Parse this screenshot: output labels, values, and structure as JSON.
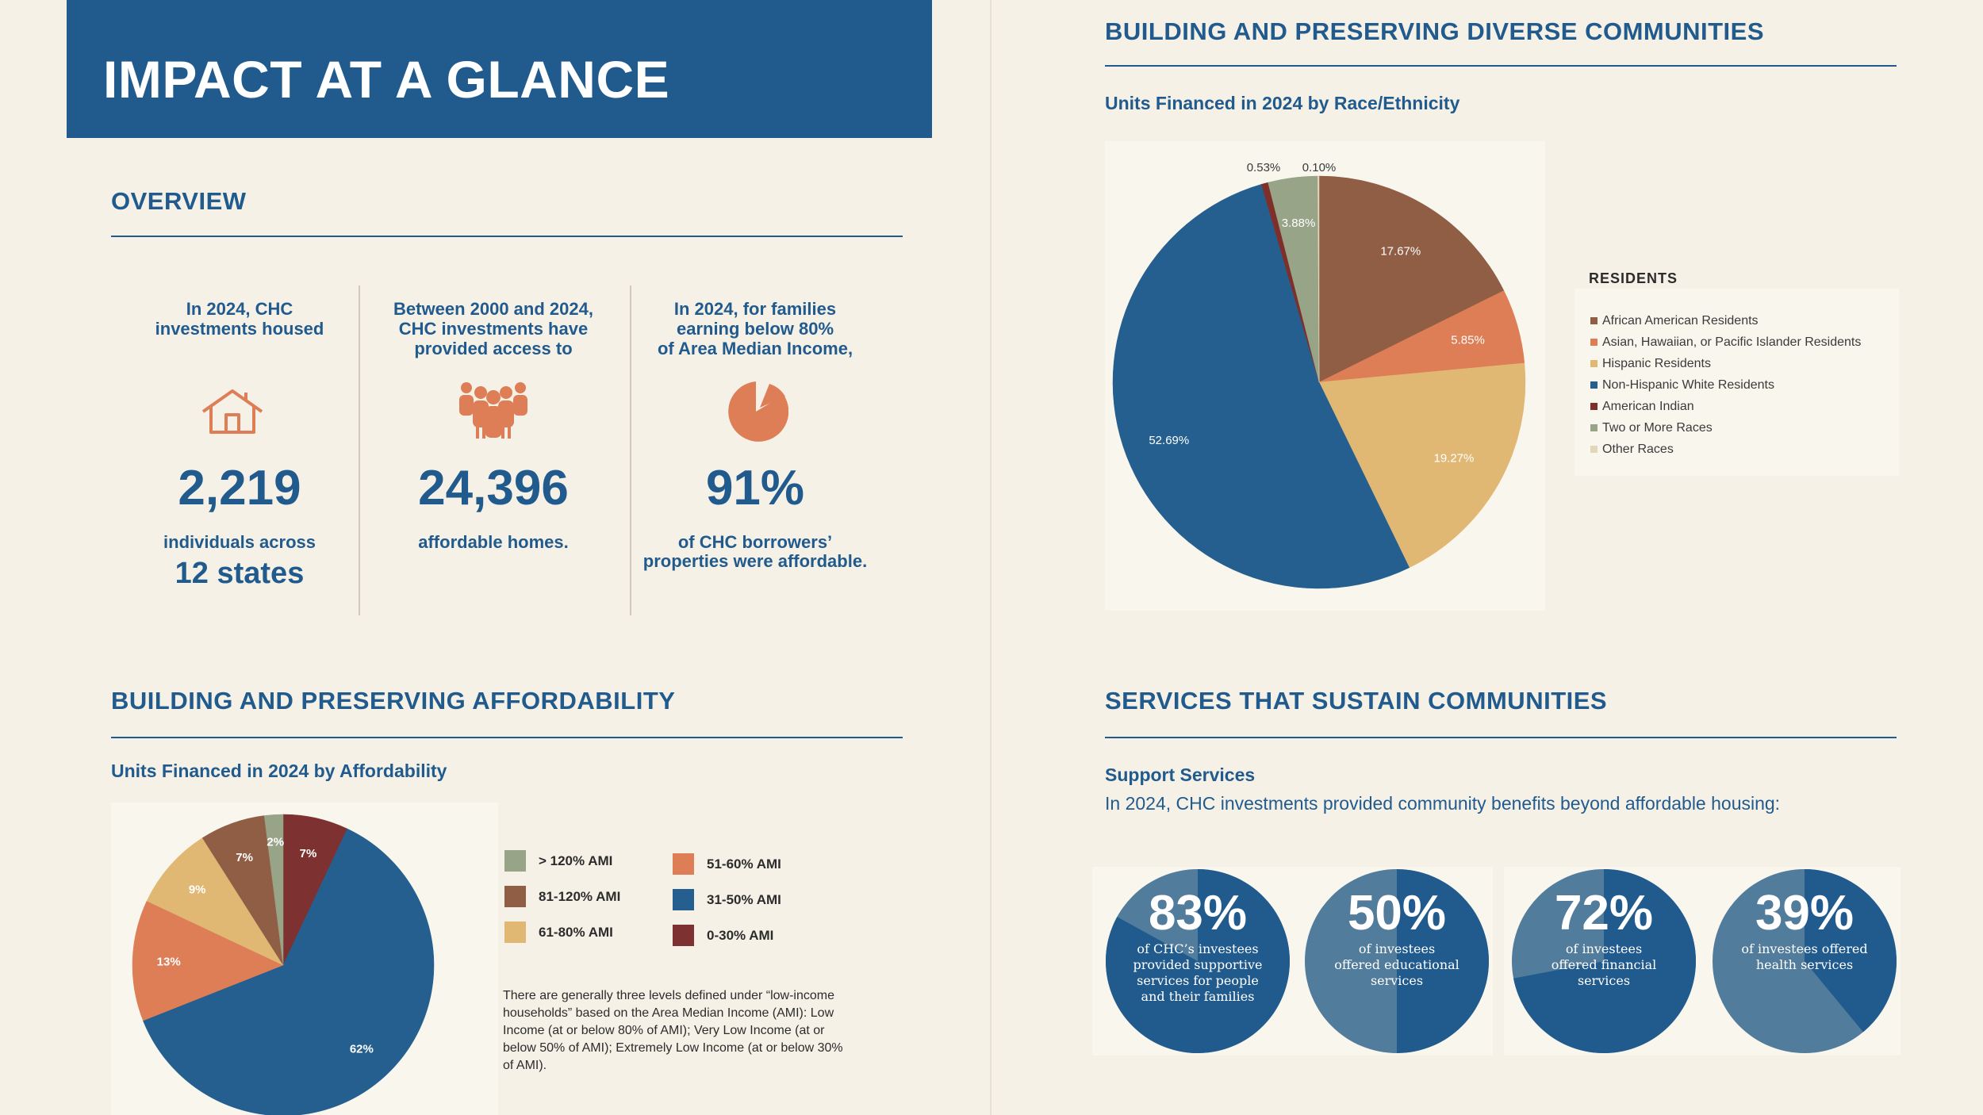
{
  "header": {
    "title": "IMPACT AT A GLANCE"
  },
  "overview": {
    "title": "OVERVIEW",
    "stats": [
      {
        "intro": [
          "In 2024, CHC",
          "investments housed"
        ],
        "icon": "house-icon",
        "value": "2,219",
        "unit": [
          "individuals across"
        ],
        "extra": "12 states"
      },
      {
        "intro": [
          "Between 2000 and 2024,",
          "CHC investments have",
          "provided access to"
        ],
        "icon": "people-icon",
        "value": "24,396",
        "unit": [
          "affordable homes."
        ],
        "extra": ""
      },
      {
        "intro": [
          "In 2024, for families",
          "earning below 80%",
          "of Area Median Income,"
        ],
        "icon": "pie-icon",
        "value": "91%",
        "unit": [
          "of CHC borrowers’",
          "properties were affordable."
        ],
        "extra": ""
      }
    ]
  },
  "diverse": {
    "title": "BUILDING AND PRESERVING DIVERSE COMMUNITIES",
    "subtitle": "Units Financed in 2024 by Race/Ethnicity",
    "legend_title": "RESIDENTS"
  },
  "affordability": {
    "title": "BUILDING AND PRESERVING AFFORDABILITY",
    "subtitle": "Units Financed in 2024 by Affordability",
    "note": "There are generally three levels defined under “low-income households” based on the Area Median Income (AMI): Low Income (at or below 80% of AMI); Very Low Income (at or below 50% of AMI); Extremely Low Income (at or below 30% of AMI)."
  },
  "services": {
    "title": "SERVICES THAT SUSTAIN COMMUNITIES",
    "support_title": "Support Services",
    "support_text": "In 2024, CHC investments provided community benefits beyond affordable housing:",
    "items": [
      {
        "value": 83,
        "label": "83%",
        "caption": [
          "of CHC’s investees",
          "provided supportive",
          "services for people",
          "and their families"
        ]
      },
      {
        "value": 50,
        "label": "50%",
        "caption": [
          "of investees",
          "offered educational",
          "services"
        ]
      },
      {
        "value": 72,
        "label": "72%",
        "caption": [
          "of investees",
          "offered financial",
          "services"
        ]
      },
      {
        "value": 39,
        "label": "39%",
        "caption": [
          "of investees offered",
          "health services"
        ]
      }
    ]
  },
  "chart_data": [
    {
      "type": "pie",
      "title": "Units Financed in 2024 by Race/Ethnicity",
      "legend_title": "RESIDENTS",
      "legend_position": "right",
      "slices": [
        {
          "name": "African American Residents",
          "value": 17.67,
          "label": "17.67%",
          "color": "#8f5e44"
        },
        {
          "name": "Asian, Hawaiian, or Pacific Islander Residents",
          "value": 5.85,
          "label": "5.85%",
          "color": "#de7e56"
        },
        {
          "name": "Hispanic Residents",
          "value": 19.27,
          "label": "19.27%",
          "color": "#e0b874"
        },
        {
          "name": "Non-Hispanic White Residents",
          "value": 52.69,
          "label": "52.69%",
          "color": "#255f8f"
        },
        {
          "name": "American Indian",
          "value": 0.53,
          "label": "0.53%",
          "color": "#7e2f2a"
        },
        {
          "name": "Two or More Races",
          "value": 3.88,
          "label": "3.88%",
          "color": "#98a488"
        },
        {
          "name": "Other Races",
          "value": 0.1,
          "label": "0.10%",
          "color": "#e2d8b9"
        }
      ]
    },
    {
      "type": "pie",
      "title": "Units Financed in 2024 by Affordability",
      "legend_position": "right",
      "slices": [
        {
          "name": "0-30% AMI",
          "value": 7,
          "label": "7%",
          "color": "#7d3131"
        },
        {
          "name": "31-50% AMI",
          "value": 62,
          "label": "62%",
          "color": "#255f8f"
        },
        {
          "name": "51-60% AMI",
          "value": 13,
          "label": "13%",
          "color": "#de7e56"
        },
        {
          "name": "61-80% AMI",
          "value": 9,
          "label": "9%",
          "color": "#e0b874"
        },
        {
          "name": "81-120% AMI",
          "value": 7,
          "label": "7%",
          "color": "#8f5e44"
        },
        {
          "name": "> 120% AMI",
          "value": 2,
          "label": "2%",
          "color": "#98a488"
        }
      ],
      "legend_order": [
        "> 120% AMI",
        "81-120% AMI",
        "61-80% AMI",
        "51-60% AMI",
        "31-50% AMI",
        "0-30% AMI"
      ]
    }
  ]
}
